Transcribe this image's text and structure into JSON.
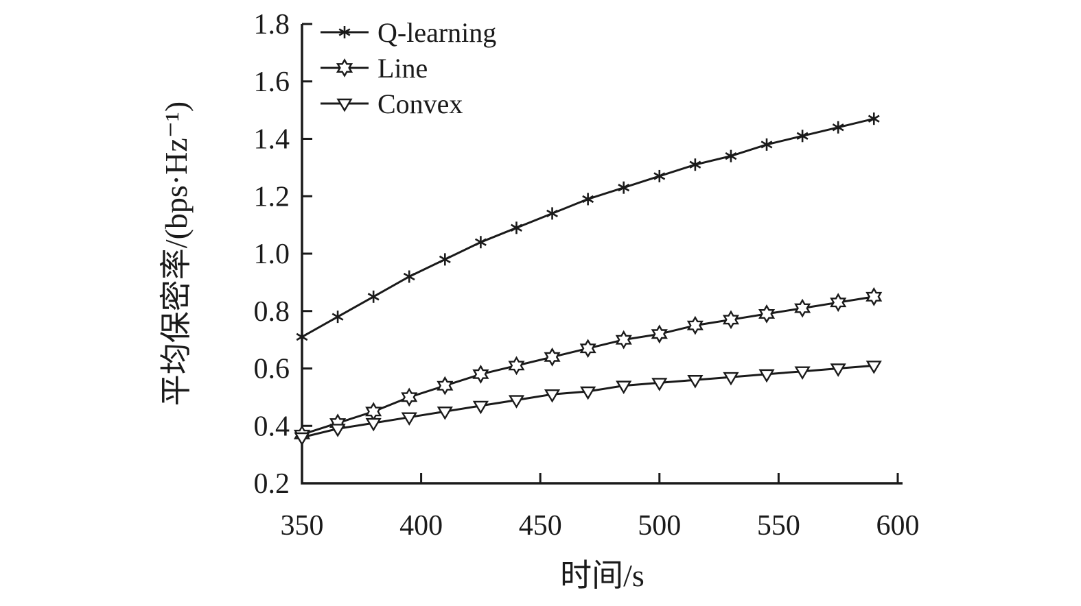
{
  "figure": {
    "background": "#ffffff",
    "ink_color": "#1a1a1a"
  },
  "chart_data": {
    "type": "line",
    "title": "",
    "xlabel": "时间/s",
    "ylabel": "平均保密率/(bps·Hz⁻¹)",
    "xlim": [
      350,
      600
    ],
    "ylim": [
      0.2,
      1.8
    ],
    "x_ticks": [
      350,
      400,
      450,
      500,
      550,
      600
    ],
    "y_ticks": [
      0.2,
      0.4,
      0.6,
      0.8,
      1.0,
      1.2,
      1.4,
      1.6,
      1.8
    ],
    "grid": false,
    "legend_position": "top-left-inside",
    "x": [
      350,
      365,
      380,
      395,
      410,
      425,
      440,
      455,
      470,
      485,
      500,
      515,
      530,
      545,
      560,
      575,
      590
    ],
    "series": [
      {
        "name": "Q-learning",
        "marker": "asterisk",
        "values": [
          0.71,
          0.78,
          0.85,
          0.92,
          0.98,
          1.04,
          1.09,
          1.14,
          1.19,
          1.23,
          1.27,
          1.31,
          1.34,
          1.38,
          1.41,
          1.44,
          1.47
        ]
      },
      {
        "name": "Line",
        "marker": "hexagram",
        "values": [
          0.37,
          0.41,
          0.45,
          0.5,
          0.54,
          0.58,
          0.61,
          0.64,
          0.67,
          0.7,
          0.72,
          0.75,
          0.77,
          0.79,
          0.81,
          0.83,
          0.85
        ]
      },
      {
        "name": "Convex",
        "marker": "triangle-down",
        "values": [
          0.36,
          0.39,
          0.41,
          0.43,
          0.45,
          0.47,
          0.49,
          0.51,
          0.52,
          0.54,
          0.55,
          0.56,
          0.57,
          0.58,
          0.59,
          0.6,
          0.61
        ]
      }
    ]
  }
}
